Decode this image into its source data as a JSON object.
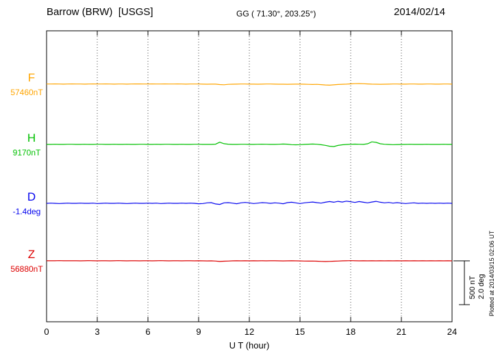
{
  "header": {
    "station_title": "Barrow (BRW)  [USGS]",
    "coords": "GG ( 71.30°, 203.25°)",
    "date": "2014/02/14"
  },
  "scale_labels": {
    "nt": "500 nT",
    "deg": "2.0 deg"
  },
  "side_note": "Plotted at 2014/03/15 02:06 UT",
  "chart_data": {
    "type": "line",
    "title": "Barrow (BRW) [USGS] magnetogram 2014/02/14",
    "xlabel": "U T (hour)",
    "x_range": [
      0,
      24
    ],
    "x_ticks": [
      0,
      3,
      6,
      9,
      12,
      15,
      18,
      21,
      24
    ],
    "grid": "vertical-dotted",
    "legend_position": "left",
    "scale_bar": {
      "nt": 500,
      "deg": 2.0
    },
    "series": [
      {
        "name": "F",
        "unit": "nT",
        "base": 57460,
        "base_label": "57460nT",
        "color": "#FFA500",
        "baseline_frac": 0.1835,
        "offsets": [
          2,
          2,
          3,
          2,
          1,
          2,
          3,
          2,
          2,
          1,
          2,
          3,
          2,
          2,
          3,
          2,
          1,
          2,
          2,
          1,
          2,
          3,
          3,
          2,
          2,
          3,
          2,
          2,
          3,
          2,
          2,
          3,
          2,
          1,
          2,
          2,
          2,
          1,
          0,
          1,
          1,
          -4,
          -6,
          -2,
          0,
          1,
          2,
          2,
          1,
          1,
          0,
          1,
          2,
          2,
          1,
          0,
          0,
          -1,
          0,
          1,
          1,
          0,
          -2,
          -3,
          -2,
          -5,
          -9,
          -11,
          -7,
          -3,
          -1,
          1,
          4,
          6,
          7,
          5,
          3,
          1,
          0,
          -1,
          0,
          1,
          2,
          2,
          1,
          1,
          2,
          2,
          1,
          1,
          2,
          2,
          1,
          1,
          2,
          2,
          1
        ]
      },
      {
        "name": "H",
        "unit": "nT",
        "base": 9170,
        "base_label": "9170nT",
        "color": "#00C000",
        "baseline_frac": 0.3906,
        "offsets": [
          1,
          1,
          2,
          1,
          1,
          2,
          2,
          1,
          1,
          2,
          1,
          1,
          2,
          2,
          1,
          1,
          2,
          1,
          1,
          2,
          1,
          1,
          2,
          2,
          1,
          1,
          2,
          1,
          2,
          2,
          1,
          1,
          2,
          1,
          1,
          2,
          2,
          1,
          1,
          1,
          3,
          26,
          9,
          3,
          1,
          1,
          2,
          2,
          1,
          1,
          2,
          3,
          2,
          1,
          1,
          2,
          5,
          3,
          -2,
          -4,
          -2,
          1,
          3,
          5,
          2,
          -3,
          -10,
          -20,
          -24,
          -11,
          -4,
          0,
          2,
          4,
          2,
          1,
          8,
          30,
          24,
          8,
          2,
          0,
          -2,
          -1,
          0,
          1,
          2,
          1,
          1,
          1,
          2,
          1,
          1,
          1,
          2,
          1,
          1
        ]
      },
      {
        "name": "D",
        "unit": "deg",
        "base": -1.4,
        "base_label": "-1.4deg",
        "color": "#0000EE",
        "baseline_frac": 0.5929,
        "offsets": [
          0,
          0.01,
          0,
          -0.01,
          0,
          0.01,
          0,
          0,
          0.01,
          0,
          0,
          0.01,
          -0.01,
          0,
          0.01,
          0,
          0,
          0.01,
          0,
          -0.01,
          0,
          0.01,
          0,
          0,
          0.01,
          0,
          0.01,
          -0.01,
          0,
          0.01,
          0,
          0,
          0.01,
          0,
          0.01,
          0,
          -0.02,
          -0.01,
          0.02,
          0.03,
          -0.03,
          -0.05,
          0.02,
          0.03,
          0.01,
          -0.02,
          0.02,
          0.04,
          0.02,
          -0.01,
          0.01,
          0.03,
          0.02,
          0,
          0.02,
          0.01,
          -0.02,
          0.03,
          0.05,
          0.02,
          -0.01,
          0.02,
          0.04,
          0.06,
          0.03,
          0.01,
          0.05,
          0.08,
          0.05,
          0.09,
          0.06,
          0.1,
          0.07,
          0.04,
          0.08,
          0.05,
          0.02,
          0.06,
          0.09,
          0.05,
          0.02,
          0.04,
          0.01,
          0.03,
          0.01,
          -0.01,
          0.01,
          0.02,
          0,
          0.01,
          0,
          0.01,
          0,
          0.01,
          0,
          0.01,
          0
        ]
      },
      {
        "name": "Z",
        "unit": "nT",
        "base": 56880,
        "base_label": "56880nT",
        "color": "#DD0000",
        "baseline_frac": 0.7906,
        "offsets": [
          1,
          1,
          1,
          2,
          1,
          1,
          1,
          1,
          0,
          1,
          2,
          1,
          0,
          1,
          1,
          0,
          1,
          2,
          1,
          0,
          1,
          1,
          0,
          1,
          1,
          0,
          1,
          2,
          1,
          0,
          1,
          1,
          0,
          1,
          1,
          0,
          1,
          0,
          -1,
          0,
          -2,
          -7,
          -4,
          -2,
          0,
          1,
          0,
          1,
          0,
          1,
          0,
          1,
          0,
          1,
          1,
          0,
          -1,
          0,
          1,
          0,
          -1,
          -2,
          -3,
          -2,
          -4,
          -6,
          -8,
          -6,
          -4,
          -2,
          0,
          1,
          2,
          1,
          0,
          1,
          0,
          1,
          0,
          1,
          0,
          1,
          0,
          1,
          0,
          1,
          0,
          1,
          0,
          1,
          0,
          1,
          0,
          1,
          0,
          1,
          0
        ]
      }
    ]
  }
}
